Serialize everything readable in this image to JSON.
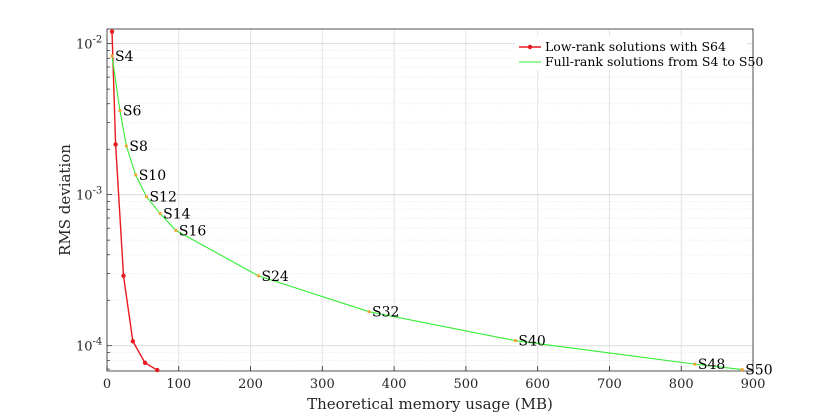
{
  "chart_data": {
    "type": "line",
    "title": "",
    "xlabel": "Theoretical memory usage (MB)",
    "ylabel": "RMS deviation",
    "xlim": [
      0,
      900
    ],
    "ylim": [
      6.8e-05,
      0.0125
    ],
    "yscale": "log",
    "xticks": [
      0,
      100,
      200,
      300,
      400,
      500,
      600,
      700,
      800,
      900
    ],
    "yticks": [
      {
        "value": 0.01,
        "base": "10",
        "exp": "-2"
      },
      {
        "value": 0.001,
        "base": "10",
        "exp": "-3"
      },
      {
        "value": 0.0001,
        "base": "10",
        "exp": "-4"
      }
    ],
    "grid": true,
    "legend_position": "top-right",
    "series": [
      {
        "name": "Low-rank solutions with S64",
        "color": "#e8191f",
        "marker": "dot",
        "x": [
          7,
          12,
          23,
          36,
          53,
          70
        ],
        "y": [
          0.012,
          0.00215,
          0.00029,
          0.000107,
          7.7e-05,
          6.9e-05
        ]
      },
      {
        "name": "Full-rank solutions from S4 to S50",
        "color": "#33ee33",
        "marker": "dot-orange",
        "x": [
          7,
          18,
          27,
          40,
          55,
          74,
          96,
          211,
          365,
          569,
          819,
          885
        ],
        "y": [
          0.0083,
          0.0036,
          0.0021,
          0.00135,
          0.00097,
          0.00075,
          0.00058,
          0.00029,
          0.000168,
          0.000108,
          7.55e-05,
          6.95e-05
        ],
        "point_labels": [
          "S4",
          "S6",
          "S8",
          "S10",
          "S12",
          "S14",
          "S16",
          "S24",
          "S32",
          "S40",
          "S48",
          "S50"
        ]
      }
    ]
  }
}
